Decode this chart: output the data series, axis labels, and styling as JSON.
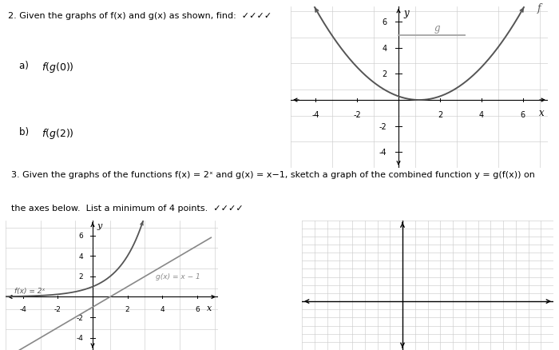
{
  "title2": "2. Given the graphs of f(x) and g(x) as shown, find:  ✓✓✓✓",
  "part_a": "a)  f(g(0))",
  "part_b": "b)  f(g(2))",
  "title3_line1": "3. Given the graphs of the functions f(x) = 2ˣ and g(x) = x−1, sketch a graph of the combined function y = g(f(x)) on",
  "title3_line2": "the axes below.  List a minimum of 4 points.  ✓✓✓✓",
  "bg_color": "#ffffff",
  "plot1": {
    "xlim": [
      -5.2,
      7.2
    ],
    "ylim": [
      -5.2,
      7.2
    ],
    "xticks": [
      -4,
      -2,
      2,
      4,
      6
    ],
    "yticks": [
      -4,
      -2,
      2,
      4,
      6
    ],
    "f_color": "#555555",
    "g_color": "#aaaaaa",
    "f_label": "f",
    "g_label": "g",
    "f_min_x": 1.0,
    "f_min_y": 0.0,
    "f_a": 0.28,
    "g_x0": 0.0,
    "g_x1": 3.2,
    "g_y": 5.0
  },
  "plot2": {
    "xlim": [
      -5.0,
      7.2
    ],
    "ylim": [
      -5.2,
      7.5
    ],
    "xticks": [
      -4,
      -2,
      2,
      4,
      6
    ],
    "yticks": [
      -4,
      -2,
      2,
      4,
      6
    ],
    "fx_color": "#555555",
    "gx_color": "#888888",
    "fx_label": "f(x) = 2ˣ",
    "gx_label": "g(x) = x − 1"
  },
  "plot3": {
    "xlim": [
      -8,
      12
    ],
    "ylim": [
      -6,
      10
    ],
    "grid_step": 1,
    "grid_color": "#cccccc"
  }
}
